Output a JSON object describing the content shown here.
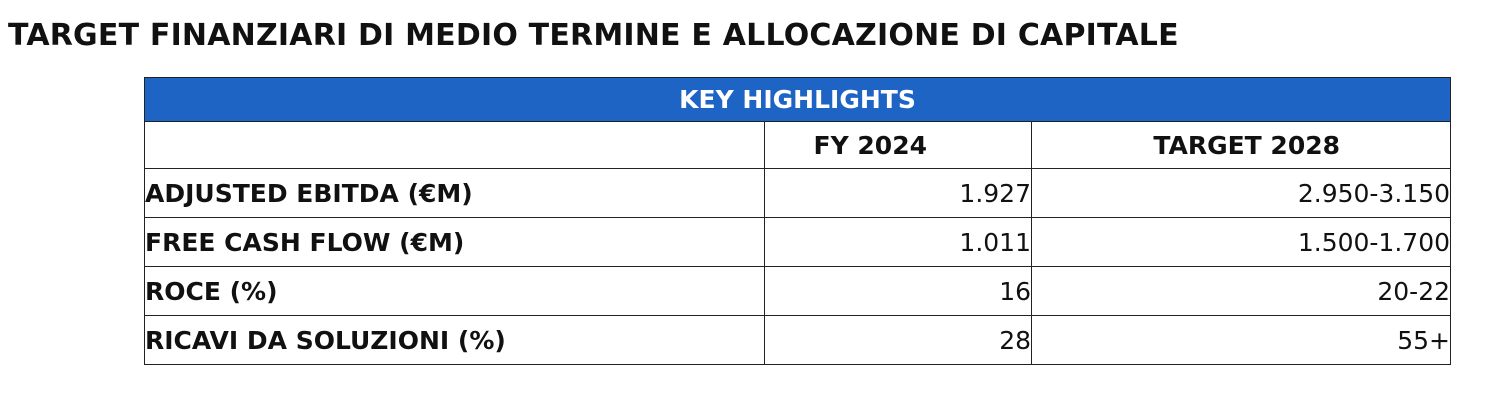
{
  "title": "TARGET FINANZIARI DI MEDIO TERMINE E ALLOCAZIONE DI CAPITALE",
  "table": {
    "banner": "KEY HIGHLIGHTS",
    "columns": [
      "",
      "FY 2024",
      "TARGET 2028"
    ],
    "rows": [
      {
        "label": "ADJUSTED EBITDA (€M)",
        "fy2024": "1.927",
        "target2028": "2.950-3.150"
      },
      {
        "label": "FREE CASH FLOW (€M)",
        "fy2024": "1.011",
        "target2028": "1.500-1.700"
      },
      {
        "label": "ROCE (%)",
        "fy2024": "16",
        "target2028": "20-22"
      },
      {
        "label": "RICAVI DA SOLUZIONI (%)",
        "fy2024": "28",
        "target2028": "55+"
      }
    ]
  },
  "colors": {
    "banner_background": "#1e64c4",
    "banner_text": "#ffffff",
    "border": "#222222"
  }
}
